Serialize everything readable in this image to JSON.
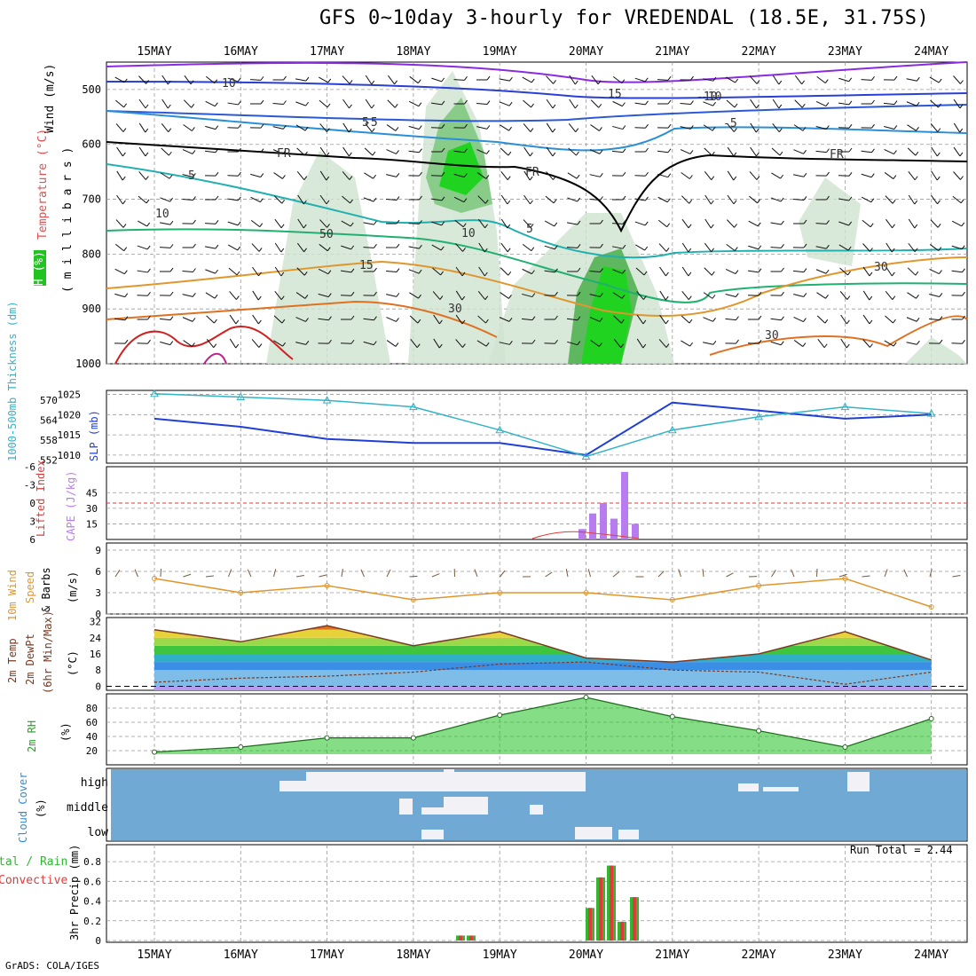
{
  "title": "GFS 0~10day 3-hourly for VREDENDAL (18.5E, 31.75S)",
  "credit": "GrADS: COLA/IGES",
  "run_total": "Run Total = 2.44",
  "dates": [
    "15MAY",
    "16MAY",
    "17MAY",
    "18MAY",
    "19MAY",
    "20MAY",
    "21MAY",
    "22MAY",
    "23MAY",
    "24MAY"
  ],
  "panels": {
    "upper_air": {
      "label_rh": "RH (%)",
      "label_temp": "Temperature (°C)",
      "label_wind": "Wind (m/s)",
      "label_mb": "( m i l l i b a r s )",
      "yticks": [
        "500",
        "600",
        "700",
        "800",
        "900",
        "1000"
      ],
      "contour_labels": [
        "10",
        "15",
        "-10",
        "-5",
        "-5",
        "5",
        "FR",
        "FR",
        "FR",
        "5",
        "10",
        "-10",
        "10",
        "5",
        "50",
        "15",
        "30",
        "30",
        "30"
      ]
    },
    "pressure": {
      "label_thick": "1000-500mb Thickness (dm)",
      "label_slp": "SLP (mb)",
      "yticks_left": [
        "570",
        "564",
        "558",
        "552"
      ],
      "yticks_right": [
        "1025",
        "1020",
        "1015",
        "1010"
      ]
    },
    "instability": {
      "label_li": "Lifted Index",
      "label_cape": "CAPE (J/kg)",
      "yticks_left": [
        "-6",
        "-3",
        "0",
        "3",
        "6"
      ],
      "yticks_right": [
        "45",
        "30",
        "15"
      ]
    },
    "wind10m": {
      "label_a": "10m Wind",
      "label_b": "Speed",
      "label_c": "& Barbs",
      "label_unit": "(m/s)",
      "yticks": [
        "9",
        "6",
        "3",
        "0"
      ]
    },
    "temp2m": {
      "label_a": "2m Temp",
      "label_b": "2m DewPt",
      "label_c": "(6hr Min/Max)",
      "label_unit": "(°C)",
      "yticks": [
        "32",
        "24",
        "16",
        "8",
        "0"
      ]
    },
    "rh2m": {
      "label_a": "2m RH",
      "label_unit": "(%)",
      "yticks": [
        "80",
        "60",
        "40",
        "20"
      ]
    },
    "cloud": {
      "label_a": "Cloud Cover",
      "label_unit": "(%)",
      "rows": [
        "high",
        "middle",
        "low"
      ]
    },
    "precip": {
      "label_a": "3hr Precip (mm)",
      "label_b": "tal / Rain",
      "label_c": "Convective",
      "yticks": [
        "0.8",
        "0.6",
        "0.4",
        "0.2",
        "0"
      ]
    }
  },
  "colors": {
    "slp": "#1f3fd6",
    "thickness": "#33b3c6",
    "cape": "#b87cf0",
    "lifted_index": "#e23a3a",
    "wind_speed": "#e0962c",
    "rh_green": "#21c321",
    "cloud_bg": "#6fa9d4",
    "precip_total": "#33b733",
    "precip_conv": "#e23a3a"
  },
  "chart_data": [
    {
      "type": "line",
      "title": "SLP (mb)",
      "x": [
        "15MAY",
        "16MAY",
        "17MAY",
        "18MAY",
        "19MAY",
        "20MAY",
        "21MAY",
        "22MAY",
        "23MAY",
        "24MAY"
      ],
      "series": [
        {
          "name": "SLP",
          "values": [
            1019,
            1017,
            1014,
            1013,
            1013,
            1010,
            1023,
            1021,
            1019,
            1020
          ]
        }
      ],
      "ylim": [
        1008,
        1026
      ]
    },
    {
      "type": "line",
      "title": "1000-500mb Thickness (dm)",
      "x": [
        "15MAY",
        "16MAY",
        "17MAY",
        "18MAY",
        "19MAY",
        "20MAY",
        "21MAY",
        "22MAY",
        "23MAY",
        "24MAY"
      ],
      "series": [
        {
          "name": "Thickness",
          "values": [
            572,
            571,
            570,
            568,
            561,
            553,
            561,
            565,
            568,
            566
          ]
        }
      ],
      "ylim": [
        551,
        573
      ]
    },
    {
      "type": "bar",
      "title": "CAPE (J/kg)",
      "categories": [
        "19.9",
        "20.0",
        "20.1",
        "20.2",
        "20.3",
        "20.4"
      ],
      "values": [
        10,
        25,
        35,
        20,
        65,
        15
      ],
      "ylim": [
        0,
        70
      ]
    },
    {
      "type": "line",
      "title": "10m Wind Speed (m/s)",
      "x": [
        "15MAY",
        "16MAY",
        "17MAY",
        "18MAY",
        "19MAY",
        "20MAY",
        "21MAY",
        "22MAY",
        "23MAY",
        "24MAY"
      ],
      "series": [
        {
          "name": "Speed",
          "values": [
            5,
            3,
            4,
            2,
            3,
            3,
            2,
            4,
            5,
            1
          ]
        }
      ],
      "ylim": [
        0,
        10
      ]
    },
    {
      "type": "area",
      "title": "2m Temp (°C)",
      "x": [
        "15MAY",
        "16MAY",
        "17MAY",
        "18MAY",
        "19MAY",
        "20MAY",
        "21MAY",
        "22MAY",
        "23MAY",
        "24MAY"
      ],
      "series": [
        {
          "name": "Temp",
          "values": [
            28,
            22,
            30,
            20,
            27,
            14,
            12,
            16,
            27,
            13
          ]
        },
        {
          "name": "DewPt",
          "values": [
            2,
            4,
            5,
            7,
            11,
            12,
            8,
            7,
            1,
            7
          ]
        }
      ],
      "ylim": [
        -2,
        34
      ]
    },
    {
      "type": "area",
      "title": "2m RH (%)",
      "x": [
        "15MAY",
        "16MAY",
        "17MAY",
        "18MAY",
        "19MAY",
        "20MAY",
        "21MAY",
        "22MAY",
        "23MAY",
        "24MAY"
      ],
      "series": [
        {
          "name": "RH",
          "values": [
            18,
            25,
            38,
            38,
            70,
            95,
            68,
            48,
            25,
            65
          ]
        }
      ],
      "ylim": [
        0,
        100
      ]
    },
    {
      "type": "bar",
      "title": "3hr Precip (mm)",
      "categories": [
        "18.5",
        "18.6",
        "20.0",
        "20.1",
        "20.2",
        "20.3",
        "20.4"
      ],
      "values": [
        0.05,
        0.05,
        0.33,
        0.64,
        0.76,
        0.19,
        0.44
      ],
      "ylim": [
        0,
        0.9
      ]
    }
  ]
}
